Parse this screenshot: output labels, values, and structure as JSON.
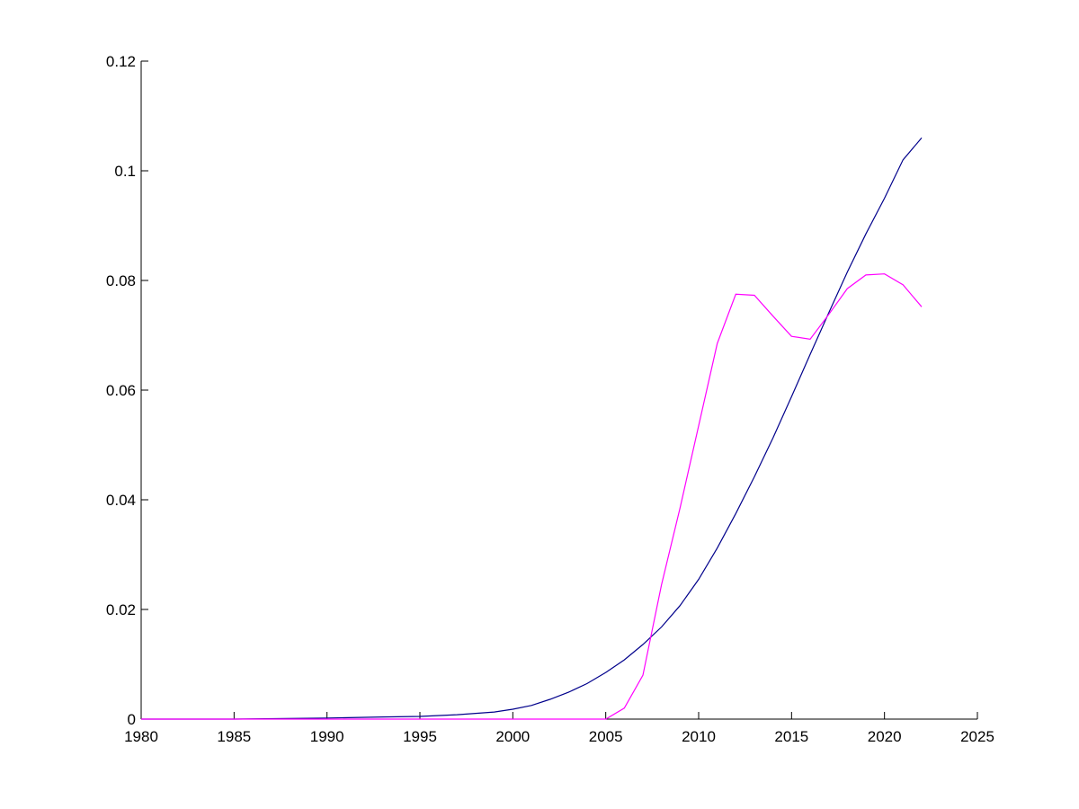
{
  "chart_data": {
    "type": "line",
    "title": "",
    "xlabel": "",
    "ylabel": "",
    "xlim": [
      1980,
      2025
    ],
    "ylim": [
      0,
      0.12
    ],
    "xticks": [
      "1980",
      "1985",
      "1990",
      "1995",
      "2000",
      "2005",
      "2010",
      "2015",
      "2020",
      "2025"
    ],
    "yticks": [
      "0",
      "0.02",
      "0.04",
      "0.06",
      "0.08",
      "0.1",
      "0.12"
    ],
    "grid": false,
    "legend": null,
    "series": [
      {
        "color": "#00008b",
        "x": [
          1980,
          1985,
          1990,
          1993,
          1995,
          1997,
          1999,
          2000,
          2001,
          2002,
          2003,
          2004,
          2005,
          2006,
          2007,
          2008,
          2009,
          2010,
          2011,
          2012,
          2013,
          2014,
          2015,
          2016,
          2017,
          2018,
          2019,
          2020,
          2021,
          2022
        ],
        "y": [
          0.0,
          0.0,
          0.0002,
          0.0004,
          0.0005,
          0.0008,
          0.0013,
          0.0018,
          0.0025,
          0.0036,
          0.0049,
          0.0065,
          0.0085,
          0.0108,
          0.0136,
          0.0168,
          0.0207,
          0.0255,
          0.0312,
          0.0375,
          0.0442,
          0.0513,
          0.0588,
          0.0665,
          0.0741,
          0.0815,
          0.0885,
          0.095,
          0.102,
          0.106
        ]
      },
      {
        "color": "#ff00ff",
        "x": [
          1980,
          2005,
          2006,
          2007,
          2008,
          2009,
          2010,
          2011,
          2012,
          2013,
          2014,
          2015,
          2016,
          2017,
          2018,
          2019,
          2020,
          2021,
          2022
        ],
        "y": [
          0.0,
          0.0,
          0.002,
          0.008,
          0.0245,
          0.0385,
          0.0535,
          0.0685,
          0.0775,
          0.0773,
          0.0735,
          0.0698,
          0.0693,
          0.0738,
          0.0785,
          0.081,
          0.0812,
          0.0792,
          0.0752
        ]
      }
    ]
  }
}
